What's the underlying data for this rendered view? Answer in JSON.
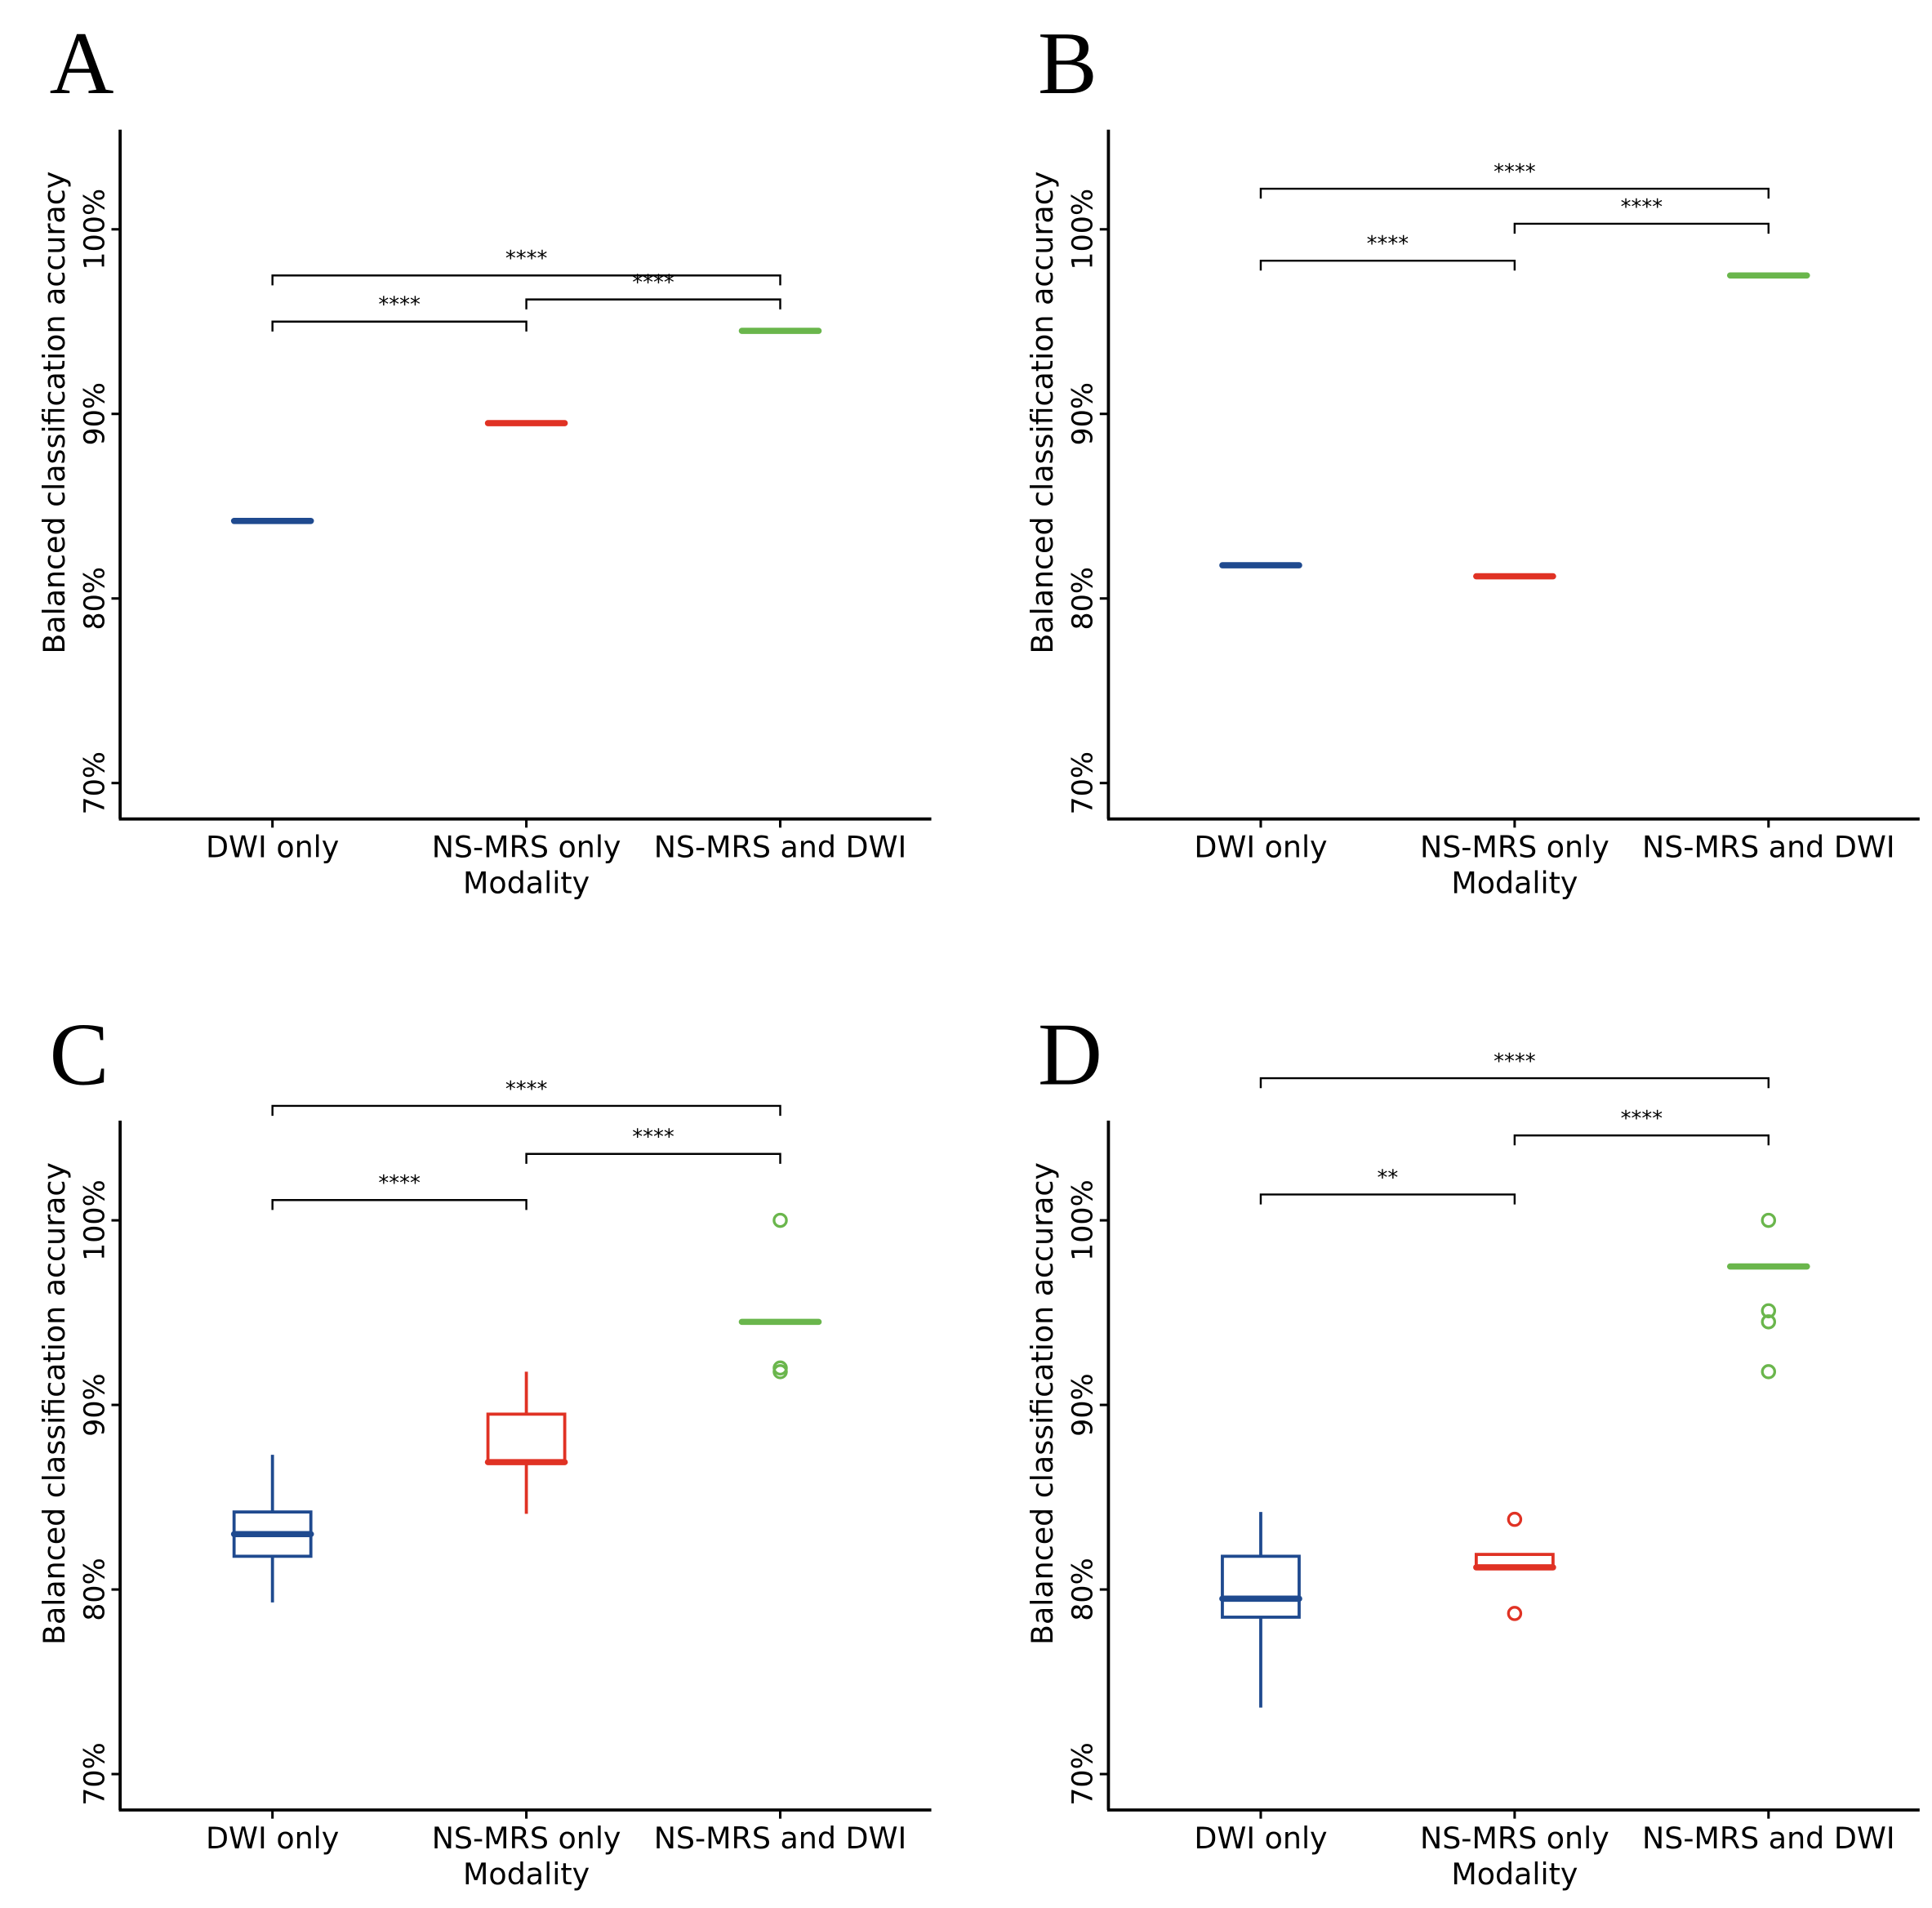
{
  "colors": {
    "DWI only": "#1f4a8f",
    "NS-MRS only": "#e03224",
    "NS-MRS and DWI": "#6ab64c"
  },
  "chart_data": [
    {
      "panel": "A",
      "type": "boxplot",
      "xlabel": "Modality",
      "ylabel": "Balanced classification accuracy",
      "categories": [
        "DWI only",
        "NS-MRS only",
        "NS-MRS and DWI"
      ],
      "yticks": [
        "70%",
        "80%",
        "90%",
        "100%"
      ],
      "ylim": [
        68,
        105.4
      ],
      "boxes": [
        {
          "q1": 84.2,
          "median": 84.2,
          "q3": 84.2,
          "whisker_low": 84.2,
          "whisker_high": 84.2,
          "outliers": []
        },
        {
          "q1": 89.5,
          "median": 89.5,
          "q3": 89.5,
          "whisker_low": 89.5,
          "whisker_high": 89.5,
          "outliers": []
        },
        {
          "q1": 94.5,
          "median": 94.5,
          "q3": 94.5,
          "whisker_low": 94.5,
          "whisker_high": 94.5,
          "outliers": []
        }
      ],
      "comparisons": [
        {
          "from": 0,
          "to": 1,
          "label": "****",
          "y": 95.0
        },
        {
          "from": 1,
          "to": 2,
          "label": "****",
          "y": 96.2
        },
        {
          "from": 0,
          "to": 2,
          "label": "****",
          "y": 97.5
        }
      ]
    },
    {
      "panel": "B",
      "type": "boxplot",
      "xlabel": "Modality",
      "ylabel": "Balanced classification accuracy",
      "categories": [
        "DWI only",
        "NS-MRS only",
        "NS-MRS and DWI"
      ],
      "yticks": [
        "70%",
        "80%",
        "90%",
        "100%"
      ],
      "ylim": [
        68,
        105.4
      ],
      "boxes": [
        {
          "q1": 81.8,
          "median": 81.8,
          "q3": 81.8,
          "whisker_low": 81.8,
          "whisker_high": 81.8,
          "outliers": []
        },
        {
          "q1": 81.2,
          "median": 81.2,
          "q3": 81.2,
          "whisker_low": 81.2,
          "whisker_high": 81.2,
          "outliers": []
        },
        {
          "q1": 97.5,
          "median": 97.5,
          "q3": 97.5,
          "whisker_low": 97.5,
          "whisker_high": 97.5,
          "outliers": []
        }
      ],
      "comparisons": [
        {
          "from": 0,
          "to": 1,
          "label": "****",
          "y": 98.3
        },
        {
          "from": 1,
          "to": 2,
          "label": "****",
          "y": 100.3
        },
        {
          "from": 0,
          "to": 2,
          "label": "****",
          "y": 102.2
        }
      ]
    },
    {
      "panel": "C",
      "type": "boxplot",
      "xlabel": "Modality",
      "ylabel": "Balanced classification accuracy",
      "categories": [
        "DWI only",
        "NS-MRS only",
        "NS-MRS and DWI"
      ],
      "yticks": [
        "70%",
        "80%",
        "90%",
        "100%"
      ],
      "ylim": [
        68,
        105.4
      ],
      "boxes": [
        {
          "q1": 81.8,
          "median": 83.0,
          "q3": 84.2,
          "whisker_low": 79.3,
          "whisker_high": 87.3,
          "outliers": []
        },
        {
          "q1": 86.9,
          "median": 86.9,
          "q3": 89.5,
          "whisker_low": 84.1,
          "whisker_high": 91.8,
          "outliers": []
        },
        {
          "q1": 94.5,
          "median": 94.5,
          "q3": 94.5,
          "whisker_low": 94.5,
          "whisker_high": 94.5,
          "outliers": [
            100,
            92.0,
            91.8
          ]
        }
      ],
      "comparisons": [
        {
          "from": 0,
          "to": 1,
          "label": "****",
          "y": 101.1
        },
        {
          "from": 1,
          "to": 2,
          "label": "****",
          "y": 103.6
        },
        {
          "from": 0,
          "to": 2,
          "label": "****",
          "y": 106.2
        }
      ]
    },
    {
      "panel": "D",
      "type": "boxplot",
      "xlabel": "Modality",
      "ylabel": "Balanced classification accuracy",
      "categories": [
        "DWI only",
        "NS-MRS only",
        "NS-MRS and DWI"
      ],
      "yticks": [
        "70%",
        "80%",
        "90%",
        "100%"
      ],
      "ylim": [
        68,
        105.4
      ],
      "boxes": [
        {
          "q1": 78.5,
          "median": 79.5,
          "q3": 81.8,
          "whisker_low": 73.6,
          "whisker_high": 84.2,
          "outliers": []
        },
        {
          "q1": 81.2,
          "median": 81.2,
          "q3": 81.9,
          "whisker_low": 81.2,
          "whisker_high": 81.9,
          "outliers": [
            83.8,
            78.7
          ]
        },
        {
          "q1": 97.5,
          "median": 97.5,
          "q3": 97.5,
          "whisker_low": 97.5,
          "whisker_high": 97.5,
          "outliers": [
            100,
            95.1,
            94.5,
            91.8
          ]
        }
      ],
      "comparisons": [
        {
          "from": 0,
          "to": 1,
          "label": "**",
          "y": 101.4
        },
        {
          "from": 1,
          "to": 2,
          "label": "****",
          "y": 104.6
        },
        {
          "from": 0,
          "to": 2,
          "label": "****",
          "y": 107.7
        }
      ]
    }
  ]
}
